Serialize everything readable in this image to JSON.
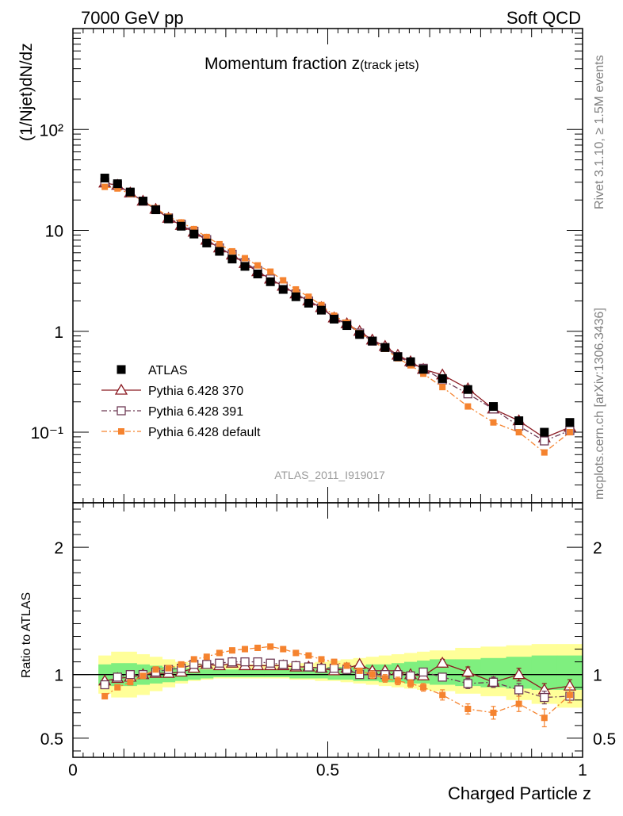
{
  "header": {
    "left": "7000 GeV pp",
    "right": "Soft QCD"
  },
  "side_text": {
    "top": "Rivet 3.1.10, ≥ 1.5M events",
    "bottom": "mcplots.cern.ch [arXiv:1306.3436]"
  },
  "analysis_id": "ATLAS_2011_I919017",
  "colors": {
    "atlas": "#000000",
    "p370": "#8b1a22",
    "p391": "#6e3a55",
    "pdef": "#f5832f",
    "band_outer": "#ffff99",
    "band_inner": "#7fef7f"
  },
  "chart_data": [
    {
      "type": "scatter",
      "title_main": "Momentum fraction z",
      "title_sub": "(track jets)",
      "ylabel": "(1/Njet)dN/dz",
      "yscale": "log",
      "ylim": [
        0.02,
        1000
      ],
      "xlim": [
        0,
        1
      ],
      "ytick_labels": [
        "10⁻¹",
        "1",
        "10",
        "10²"
      ],
      "legend_position": "bottom-left",
      "x": [
        0.0625,
        0.0875,
        0.1125,
        0.1375,
        0.1625,
        0.1875,
        0.2125,
        0.2375,
        0.2625,
        0.2875,
        0.3125,
        0.3375,
        0.3625,
        0.3875,
        0.4125,
        0.4375,
        0.4625,
        0.4875,
        0.5125,
        0.5375,
        0.5625,
        0.5875,
        0.6125,
        0.6375,
        0.6625,
        0.6875,
        0.725,
        0.775,
        0.825,
        0.875,
        0.925,
        0.975
      ],
      "series": [
        {
          "name": "ATLAS",
          "values": [
            33,
            29,
            24,
            19.5,
            16,
            13,
            11,
            9.2,
            7.5,
            6.2,
            5.2,
            4.4,
            3.7,
            3.1,
            2.6,
            2.2,
            1.9,
            1.62,
            1.32,
            1.14,
            0.93,
            0.8,
            0.69,
            0.56,
            0.5,
            0.42,
            0.34,
            0.265,
            0.18,
            0.13,
            0.1,
            0.125
          ]
        },
        {
          "name": "Pythia 6.428 370",
          "values": [
            29.5,
            28,
            23.5,
            19.5,
            16.2,
            13.2,
            11.2,
            9.6,
            8,
            6.7,
            5.7,
            4.7,
            3.9,
            3.3,
            2.8,
            2.35,
            2,
            1.72,
            1.36,
            1.19,
            1,
            0.82,
            0.71,
            0.58,
            0.5,
            0.42,
            0.37,
            0.27,
            0.17,
            0.13,
            0.088,
            0.112
          ]
        },
        {
          "name": "Pythia 6.428 391",
          "values": [
            30,
            28,
            23.5,
            19.5,
            16.1,
            13.3,
            11.5,
            9.8,
            8.1,
            6.7,
            5.8,
            4.8,
            4,
            3.3,
            2.8,
            2.35,
            2,
            1.7,
            1.35,
            1.18,
            0.96,
            0.8,
            0.69,
            0.56,
            0.49,
            0.43,
            0.33,
            0.24,
            0.17,
            0.115,
            0.082,
            0.104
          ]
        },
        {
          "name": "Pythia 6.428 default",
          "values": [
            27,
            26,
            23,
            19.5,
            16.6,
            13.7,
            12,
            10.3,
            8.6,
            7.3,
            6.2,
            5.3,
            4.5,
            3.9,
            3.2,
            2.6,
            2.2,
            1.82,
            1.43,
            1.22,
            0.96,
            0.8,
            0.67,
            0.54,
            0.46,
            0.38,
            0.28,
            0.18,
            0.125,
            0.1,
            0.063,
            0.1
          ]
        }
      ]
    },
    {
      "type": "scatter",
      "ylabel": "Ratio to ATLAS",
      "xlabel": "Charged Particle z",
      "ylim": [
        0.35,
        2.35
      ],
      "xlim": [
        0,
        1
      ],
      "yticks": [
        0.5,
        1,
        2
      ],
      "ytick_labels": [
        "0.5",
        "1",
        "2"
      ],
      "xticks": [
        0,
        0.5,
        1
      ],
      "xtick_labels": [
        "0",
        "0.5",
        "1"
      ],
      "band_outer": {
        "lo": [
          0.85,
          0.82,
          0.82,
          0.84,
          0.87,
          0.9,
          0.93,
          0.95,
          0.96,
          0.97,
          0.97,
          0.97,
          0.97,
          0.97,
          0.97,
          0.96,
          0.96,
          0.95,
          0.95,
          0.94,
          0.93,
          0.92,
          0.91,
          0.9,
          0.89,
          0.88,
          0.87,
          0.85,
          0.83,
          0.8,
          0.77,
          0.74
        ],
        "hi": [
          1.15,
          1.18,
          1.18,
          1.16,
          1.14,
          1.12,
          1.1,
          1.09,
          1.08,
          1.08,
          1.08,
          1.08,
          1.08,
          1.08,
          1.08,
          1.09,
          1.09,
          1.1,
          1.11,
          1.12,
          1.13,
          1.14,
          1.15,
          1.16,
          1.17,
          1.18,
          1.19,
          1.21,
          1.22,
          1.23,
          1.24,
          1.24
        ]
      },
      "band_inner": {
        "lo": [
          0.92,
          0.91,
          0.91,
          0.92,
          0.93,
          0.94,
          0.95,
          0.96,
          0.97,
          0.98,
          0.98,
          0.98,
          0.98,
          0.98,
          0.98,
          0.97,
          0.97,
          0.97,
          0.96,
          0.96,
          0.95,
          0.95,
          0.94,
          0.94,
          0.93,
          0.93,
          0.92,
          0.91,
          0.9,
          0.89,
          0.88,
          0.88
        ],
        "hi": [
          1.08,
          1.09,
          1.09,
          1.08,
          1.07,
          1.06,
          1.05,
          1.05,
          1.04,
          1.04,
          1.04,
          1.04,
          1.04,
          1.04,
          1.04,
          1.05,
          1.05,
          1.05,
          1.06,
          1.06,
          1.07,
          1.08,
          1.08,
          1.09,
          1.1,
          1.11,
          1.12,
          1.12,
          1.13,
          1.14,
          1.15,
          1.15
        ]
      },
      "series": [
        {
          "name": "Pythia 6.428 370",
          "values": [
            0.95,
            0.97,
            0.98,
            1.0,
            1.01,
            1.01,
            1.02,
            1.05,
            1.08,
            1.07,
            1.09,
            1.07,
            1.07,
            1.07,
            1.07,
            1.06,
            1.06,
            1.05,
            1.03,
            1.05,
            1.08,
            1.03,
            1.03,
            1.03,
            1.0,
            0.99,
            1.09,
            1.02,
            0.94,
            1.0,
            0.88,
            0.91
          ],
          "err": [
            0.02,
            0.02,
            0.02,
            0.02,
            0.02,
            0.02,
            0.02,
            0.02,
            0.02,
            0.02,
            0.02,
            0.02,
            0.02,
            0.02,
            0.02,
            0.02,
            0.02,
            0.02,
            0.02,
            0.02,
            0.02,
            0.02,
            0.02,
            0.02,
            0.02,
            0.03,
            0.03,
            0.04,
            0.04,
            0.05,
            0.05,
            0.05
          ]
        },
        {
          "name": "Pythia 6.428 391",
          "values": [
            0.92,
            0.98,
            1.0,
            1.0,
            1.02,
            1.04,
            1.05,
            1.08,
            1.08,
            1.09,
            1.1,
            1.1,
            1.1,
            1.09,
            1.08,
            1.07,
            1.06,
            1.05,
            1.05,
            1.04,
            1.0,
            1.0,
            1.0,
            1.0,
            0.99,
            1.02,
            0.98,
            0.93,
            0.94,
            0.88,
            0.82,
            0.83
          ],
          "err": [
            0.02,
            0.02,
            0.02,
            0.02,
            0.02,
            0.02,
            0.02,
            0.02,
            0.02,
            0.02,
            0.02,
            0.02,
            0.02,
            0.02,
            0.02,
            0.02,
            0.02,
            0.02,
            0.02,
            0.02,
            0.02,
            0.02,
            0.02,
            0.02,
            0.02,
            0.03,
            0.03,
            0.04,
            0.04,
            0.05,
            0.05,
            0.05
          ]
        },
        {
          "name": "Pythia 6.428 default",
          "values": [
            0.83,
            0.9,
            0.94,
            0.99,
            1.04,
            1.05,
            1.08,
            1.12,
            1.14,
            1.17,
            1.19,
            1.2,
            1.21,
            1.22,
            1.2,
            1.17,
            1.15,
            1.12,
            1.1,
            1.07,
            1.03,
            1.0,
            0.97,
            0.95,
            0.93,
            0.9,
            0.84,
            0.73,
            0.7,
            0.77,
            0.66,
            0.84
          ],
          "err": [
            0.02,
            0.02,
            0.02,
            0.02,
            0.02,
            0.02,
            0.02,
            0.02,
            0.02,
            0.02,
            0.02,
            0.02,
            0.02,
            0.02,
            0.02,
            0.02,
            0.02,
            0.02,
            0.02,
            0.02,
            0.02,
            0.03,
            0.03,
            0.03,
            0.03,
            0.03,
            0.04,
            0.04,
            0.05,
            0.06,
            0.07,
            0.06
          ]
        }
      ]
    }
  ]
}
